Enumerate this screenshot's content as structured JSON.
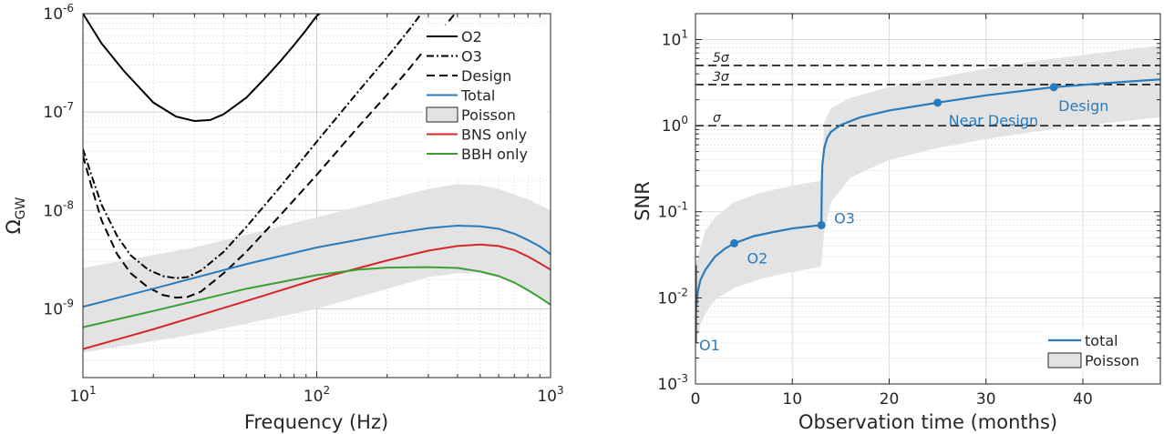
{
  "chart_data": [
    {
      "type": "line",
      "xlabel": "Frequency (Hz)",
      "ylabel": "Ω",
      "ylabel_sub": "GW",
      "xscale": "log",
      "yscale": "log",
      "xlim": [
        10,
        1000
      ],
      "ylim": [
        2e-10,
        1e-06
      ],
      "grid": true,
      "legend_position": "top-right",
      "x_ticks": [
        {
          "value": 10,
          "base": "10",
          "exp": "1"
        },
        {
          "value": 100,
          "base": "10",
          "exp": "2"
        },
        {
          "value": 1000,
          "base": "10",
          "exp": "3"
        }
      ],
      "y_ticks": [
        {
          "value": 1e-09,
          "base": "10",
          "exp": "-9"
        },
        {
          "value": 1e-08,
          "base": "10",
          "exp": "-8"
        },
        {
          "value": 1e-07,
          "base": "10",
          "exp": "-7"
        },
        {
          "value": 1e-06,
          "base": "10",
          "exp": "-6"
        }
      ],
      "series": [
        {
          "name": "O2",
          "color": "#000000",
          "dash": "solid",
          "points": [
            [
              10,
              1e-06
            ],
            [
              12,
              5e-07
            ],
            [
              15,
              2.6e-07
            ],
            [
              20,
              1.25e-07
            ],
            [
              25,
              9e-08
            ],
            [
              30,
              8.1e-08
            ],
            [
              35,
              8.3e-08
            ],
            [
              40,
              9.5e-08
            ],
            [
              50,
              1.4e-07
            ],
            [
              60,
              2.2e-07
            ],
            [
              70,
              3.3e-07
            ],
            [
              80,
              4.8e-07
            ],
            [
              90,
              6.8e-07
            ],
            [
              100,
              9.5e-07
            ],
            [
              103,
              1e-06
            ]
          ]
        },
        {
          "name": "O3",
          "color": "#000000",
          "dash": "dashdot",
          "points": [
            [
              10,
              4.2e-08
            ],
            [
              11,
              2.1e-08
            ],
            [
              12,
              1.15e-08
            ],
            [
              14,
              5.5e-09
            ],
            [
              16,
              3.5e-09
            ],
            [
              19,
              2.5e-09
            ],
            [
              22,
              2.15e-09
            ],
            [
              25,
              2.05e-09
            ],
            [
              28,
              2.1e-09
            ],
            [
              32,
              2.45e-09
            ],
            [
              40,
              3.8e-09
            ],
            [
              50,
              6.8e-09
            ],
            [
              70,
              1.75e-08
            ],
            [
              100,
              5e-08
            ],
            [
              150,
              1.6e-07
            ],
            [
              200,
              3.6e-07
            ],
            [
              250,
              7e-07
            ],
            [
              280,
              1e-06
            ]
          ]
        },
        {
          "name": "Design",
          "color": "#000000",
          "dash": "dashed",
          "points": [
            [
              10,
              3.6e-08
            ],
            [
              11,
              1.6e-08
            ],
            [
              12,
              8e-09
            ],
            [
              14,
              3.6e-09
            ],
            [
              16,
              2.3e-09
            ],
            [
              19,
              1.65e-09
            ],
            [
              22,
              1.38e-09
            ],
            [
              25,
              1.3e-09
            ],
            [
              28,
              1.32e-09
            ],
            [
              32,
              1.5e-09
            ],
            [
              40,
              2.3e-09
            ],
            [
              50,
              3.8e-09
            ],
            [
              70,
              9e-09
            ],
            [
              100,
              2.3e-08
            ],
            [
              150,
              7e-08
            ],
            [
              200,
              1.5e-07
            ],
            [
              250,
              2.8e-07
            ],
            [
              300,
              4.8e-07
            ],
            [
              350,
              7.3e-07
            ],
            [
              390,
              1e-06
            ]
          ]
        },
        {
          "name": "Total",
          "color": "#2b7bba",
          "dash": "solid",
          "points": [
            [
              10,
              1.05e-09
            ],
            [
              20,
              1.6e-09
            ],
            [
              50,
              2.85e-09
            ],
            [
              100,
              4.2e-09
            ],
            [
              200,
              5.7e-09
            ],
            [
              300,
              6.6e-09
            ],
            [
              400,
              7e-09
            ],
            [
              500,
              6.9e-09
            ],
            [
              600,
              6.5e-09
            ],
            [
              700,
              5.8e-09
            ],
            [
              800,
              5e-09
            ],
            [
              900,
              4.3e-09
            ],
            [
              1000,
              3.6e-09
            ]
          ]
        },
        {
          "name": "BNS only",
          "color": "#d7262b",
          "dash": "solid",
          "points": [
            [
              10,
              3.9e-10
            ],
            [
              20,
              6.2e-10
            ],
            [
              50,
              1.2e-09
            ],
            [
              100,
              2e-09
            ],
            [
              200,
              3.1e-09
            ],
            [
              300,
              3.9e-09
            ],
            [
              400,
              4.35e-09
            ],
            [
              500,
              4.5e-09
            ],
            [
              600,
              4.35e-09
            ],
            [
              700,
              3.95e-09
            ],
            [
              800,
              3.4e-09
            ],
            [
              900,
              2.9e-09
            ],
            [
              1000,
              2.5e-09
            ]
          ]
        },
        {
          "name": "BBH only",
          "color": "#3c9e35",
          "dash": "solid",
          "points": [
            [
              10,
              6.5e-10
            ],
            [
              20,
              9.5e-10
            ],
            [
              50,
              1.6e-09
            ],
            [
              100,
              2.2e-09
            ],
            [
              150,
              2.5e-09
            ],
            [
              200,
              2.62e-09
            ],
            [
              300,
              2.65e-09
            ],
            [
              400,
              2.6e-09
            ],
            [
              500,
              2.4e-09
            ],
            [
              600,
              2.15e-09
            ],
            [
              700,
              1.85e-09
            ],
            [
              800,
              1.55e-09
            ],
            [
              900,
              1.3e-09
            ],
            [
              1000,
              1.1e-09
            ]
          ]
        }
      ],
      "band": {
        "name": "Poisson",
        "color": "#e3e3e3",
        "upper": [
          [
            10,
            2.6e-09
          ],
          [
            30,
            4.2e-09
          ],
          [
            100,
            8.5e-09
          ],
          [
            200,
            1.3e-08
          ],
          [
            300,
            1.65e-08
          ],
          [
            400,
            1.85e-08
          ],
          [
            500,
            1.8e-08
          ],
          [
            600,
            1.65e-08
          ],
          [
            700,
            1.45e-08
          ],
          [
            800,
            1.3e-08
          ],
          [
            1000,
            1e-08
          ]
        ],
        "lower": [
          [
            10,
            3.6e-10
          ],
          [
            30,
            5.5e-10
          ],
          [
            100,
            1e-09
          ],
          [
            200,
            1.6e-09
          ],
          [
            300,
            2.1e-09
          ],
          [
            400,
            2.3e-09
          ],
          [
            500,
            2.3e-09
          ],
          [
            600,
            2.1e-09
          ],
          [
            700,
            1.8e-09
          ],
          [
            800,
            1.5e-09
          ],
          [
            1000,
            1.1e-09
          ]
        ]
      },
      "legend": [
        "O2",
        "O3",
        "Design",
        "Total",
        "Poisson",
        "BNS only",
        "BBH only"
      ]
    },
    {
      "type": "line",
      "xlabel": "Observation time (months)",
      "ylabel": "SNR",
      "xscale": "linear",
      "yscale": "log",
      "xlim": [
        0,
        48
      ],
      "ylim": [
        0.001,
        20
      ],
      "grid": true,
      "legend_position": "bottom-right",
      "x_ticks": [
        {
          "value": 0,
          "label": "0"
        },
        {
          "value": 10,
          "label": "10"
        },
        {
          "value": 20,
          "label": "20"
        },
        {
          "value": 30,
          "label": "30"
        },
        {
          "value": 40,
          "label": "40"
        }
      ],
      "y_ticks": [
        {
          "value": 0.001,
          "base": "10",
          "exp": "-3"
        },
        {
          "value": 0.01,
          "base": "10",
          "exp": "-2"
        },
        {
          "value": 0.1,
          "base": "10",
          "exp": "-1"
        },
        {
          "value": 1,
          "base": "10",
          "exp": "0"
        },
        {
          "value": 10,
          "base": "10",
          "exp": "1"
        }
      ],
      "thresholds": [
        {
          "value": 5,
          "label": "5σ"
        },
        {
          "value": 3,
          "label": "3σ"
        },
        {
          "value": 1,
          "label": "σ"
        }
      ],
      "series": [
        {
          "name": "total",
          "color": "#2b7bba",
          "points": [
            [
              0,
              0.0065
            ],
            [
              0.25,
              0.012
            ],
            [
              0.5,
              0.016
            ],
            [
              1,
              0.021
            ],
            [
              2,
              0.03
            ],
            [
              3,
              0.037
            ],
            [
              4,
              0.043
            ],
            [
              6,
              0.052
            ],
            [
              8,
              0.058
            ],
            [
              10,
              0.064
            ],
            [
              12,
              0.068
            ],
            [
              13,
              0.07
            ],
            [
              13.02,
              0.12
            ],
            [
              13.05,
              0.22
            ],
            [
              13.1,
              0.35
            ],
            [
              13.3,
              0.55
            ],
            [
              13.6,
              0.72
            ],
            [
              14,
              0.85
            ],
            [
              15,
              1.02
            ],
            [
              17,
              1.25
            ],
            [
              20,
              1.5
            ],
            [
              25,
              1.85
            ],
            [
              30,
              2.25
            ],
            [
              37,
              2.8
            ],
            [
              42,
              3.1
            ],
            [
              48,
              3.45
            ]
          ]
        }
      ],
      "markers": [
        {
          "x": 0,
          "y": 0.0065,
          "label": "O1"
        },
        {
          "x": 4,
          "y": 0.043,
          "label": "O2"
        },
        {
          "x": 13,
          "y": 0.07,
          "label": "O3"
        },
        {
          "x": 25,
          "y": 1.85,
          "label": "Near Design"
        },
        {
          "x": 37,
          "y": 2.8,
          "label": "Design"
        }
      ],
      "band": {
        "name": "Poisson",
        "color": "#e3e3e3",
        "upper": [
          [
            0,
            0.024
          ],
          [
            1,
            0.06
          ],
          [
            2,
            0.085
          ],
          [
            4,
            0.13
          ],
          [
            7,
            0.17
          ],
          [
            10,
            0.2
          ],
          [
            12.9,
            0.23
          ],
          [
            13,
            0.26
          ],
          [
            13.3,
            1.1
          ],
          [
            14,
            1.6
          ],
          [
            16,
            2.1
          ],
          [
            20,
            2.8
          ],
          [
            25,
            3.6
          ],
          [
            30,
            4.6
          ],
          [
            35,
            5.6
          ],
          [
            40,
            6.6
          ],
          [
            45,
            7.8
          ],
          [
            48,
            8.5
          ]
        ],
        "lower": [
          [
            0,
            0.003
          ],
          [
            0.5,
            0.0048
          ],
          [
            1,
            0.0065
          ],
          [
            2,
            0.0095
          ],
          [
            4,
            0.013
          ],
          [
            7,
            0.017
          ],
          [
            10,
            0.02
          ],
          [
            12.9,
            0.023
          ],
          [
            13,
            0.025
          ],
          [
            13.3,
            0.06
          ],
          [
            14,
            0.13
          ],
          [
            16,
            0.25
          ],
          [
            20,
            0.4
          ],
          [
            25,
            0.55
          ],
          [
            30,
            0.7
          ],
          [
            35,
            0.85
          ],
          [
            40,
            1.0
          ],
          [
            45,
            1.15
          ],
          [
            48,
            1.25
          ]
        ]
      },
      "legend": [
        "total",
        "Poisson"
      ]
    }
  ]
}
